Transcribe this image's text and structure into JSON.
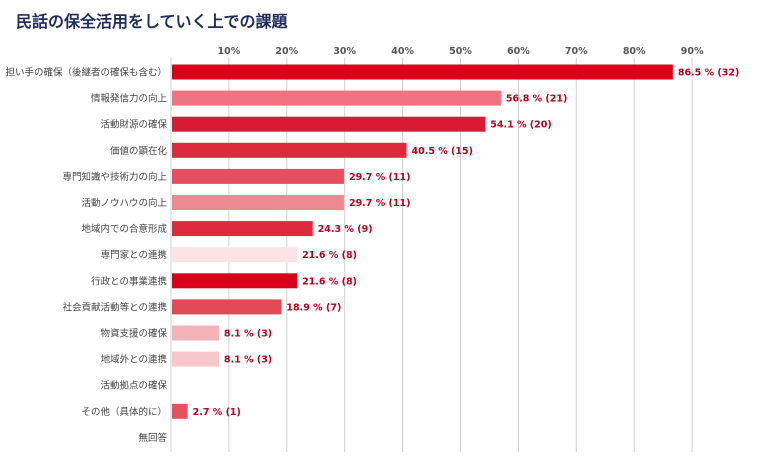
{
  "title": "民話の保全活用をしていく上での課題",
  "chart_data": {
    "type": "bar",
    "orientation": "horizontal",
    "title": "民話の保全活用をしていく上での課題",
    "categories": [
      "担い手の確保（後継者の確保も含む）",
      "情報発信力の向上",
      "活動財源の確保",
      "価値の顕在化",
      "専門知識や技術力の向上",
      "活動ノウハウの向上",
      "地域内での合意形成",
      "専門家との連携",
      "行政との事業連携",
      "社会貢献活動等との連携",
      "物資支援の確保",
      "地域外との連携",
      "活動拠点の確保",
      "その他（具体的に）",
      "無回答"
    ],
    "values": [
      86.5,
      56.8,
      54.1,
      40.5,
      29.7,
      29.7,
      24.3,
      21.6,
      21.6,
      18.9,
      8.1,
      8.1,
      0,
      2.7,
      0
    ],
    "labels": [
      "86.5 % (32)",
      "56.8 % (21)",
      "54.1 % (20)",
      "40.5 % (15)",
      "29.7 % (11)",
      "29.7 % (11)",
      "24.3 % (9)",
      "21.6 % (8)",
      "21.6 % (8)",
      "18.9 % (7)",
      "8.1 % (3)",
      "8.1 % (3)",
      "",
      "2.7 % (1)",
      ""
    ],
    "colors": [
      "#d9001b",
      "#ee7380",
      "#d91a35",
      "#dd2a3f",
      "#e5505e",
      "#ec8a92",
      "#df2a3e",
      "#fbe3e5",
      "#d9001b",
      "#e14a57",
      "#f2b2b8",
      "#f5c6cb",
      "#ffffff",
      "#e4505d",
      "#ffffff"
    ],
    "xticks": [
      "10%",
      "20%",
      "30%",
      "40%",
      "50%",
      "60%",
      "70%",
      "80%",
      "90%"
    ],
    "xlim": [
      0,
      90
    ],
    "grid": true
  }
}
